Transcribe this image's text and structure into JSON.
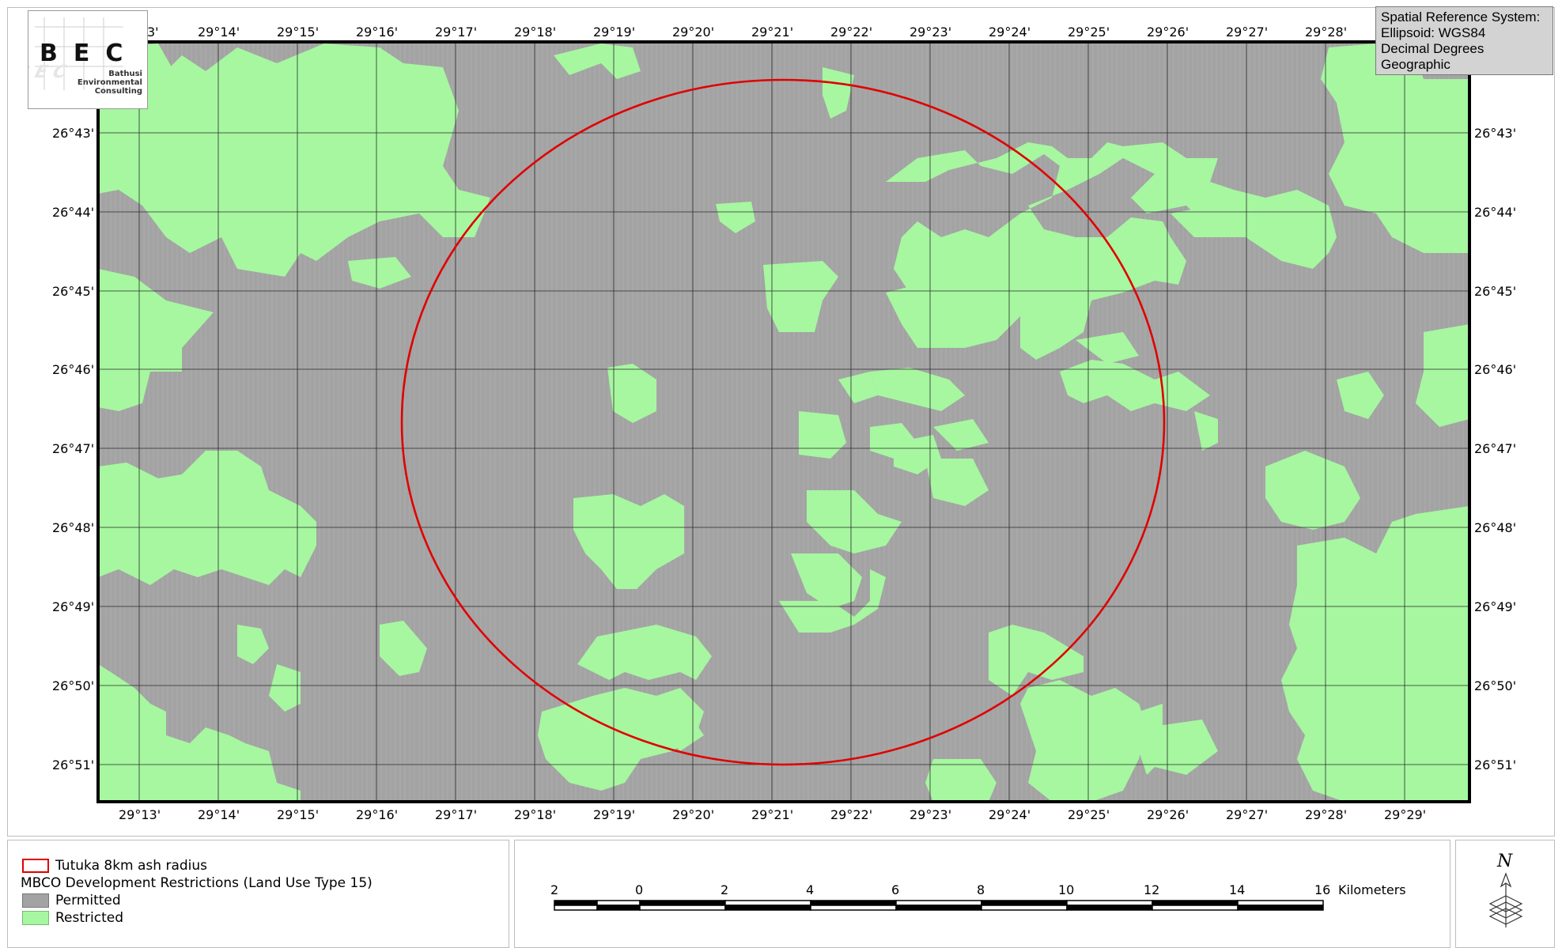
{
  "logo": {
    "letters": "BEC",
    "company_line1": "Bathusi",
    "company_line2": "Environmental",
    "company_line3": "Consulting"
  },
  "spatial_reference": {
    "title": "Spatial Reference System:",
    "ellipsoid": "Ellipsoid: WGS84",
    "units": "Decimal Degrees",
    "type": "Geographic"
  },
  "graticule": {
    "top_longitudes": [
      "3'",
      "29°14'",
      "29°15'",
      "29°16'",
      "29°17'",
      "29°18'",
      "29°19'",
      "29°20'",
      "29°21'",
      "29°22'",
      "29°23'",
      "29°24'",
      "29°25'",
      "29°26'",
      "29°27'",
      "29°28'"
    ],
    "bottom_longitudes": [
      "29°13'",
      "29°14'",
      "29°15'",
      "29°16'",
      "29°17'",
      "29°18'",
      "29°19'",
      "29°20'",
      "29°21'",
      "29°22'",
      "29°23'",
      "29°24'",
      "29°25'",
      "29°26'",
      "29°27'",
      "29°28'",
      "29°29'"
    ],
    "left_latitudes": [
      "26°43'",
      "26°44'",
      "26°45'",
      "26°46'",
      "26°47'",
      "26°48'",
      "26°49'",
      "26°50'",
      "26°51'"
    ],
    "right_latitudes": [
      "26°43'",
      "26°44'",
      "26°45'",
      "26°46'",
      "26°47'",
      "26°48'",
      "26°49'",
      "26°50'",
      "26°51'"
    ]
  },
  "legend": {
    "buffer_label": "Tutuka 8km ash radius",
    "layer_title": "MBCO Development Restrictions (Land Use Type 15)",
    "permitted_label": "Permitted",
    "restricted_label": "Restricted",
    "buffer_color": "#e00000",
    "permitted_color": "#a3a3a3",
    "restricted_color": "#a6f7a0"
  },
  "scalebar": {
    "labels": [
      "2",
      "0",
      "2",
      "4",
      "6",
      "8",
      "10",
      "12",
      "14",
      "16"
    ],
    "unit": "Kilometers"
  },
  "north_arrow": {
    "letter": "N"
  }
}
